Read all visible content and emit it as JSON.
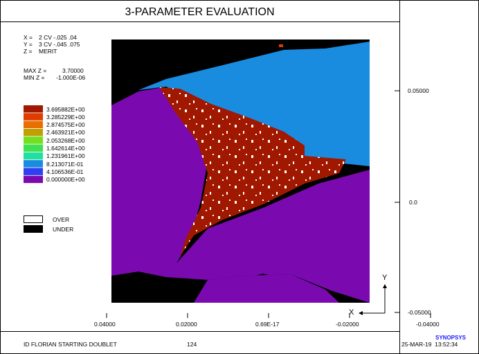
{
  "title": "3-PARAMETER EVALUATION",
  "params": [
    {
      "key": "X =",
      "value": "2 CV -.025 .04"
    },
    {
      "key": "Y =",
      "value": "3 CV -.045 .075"
    },
    {
      "key": "Z =",
      "value": "MERIT"
    }
  ],
  "range": [
    {
      "key": "MAX Z =",
      "value": "3.70000"
    },
    {
      "key": "MIN Z =",
      "value": "-1.000E-06"
    }
  ],
  "legend": [
    {
      "label": "3.695882E+00",
      "color": "#a01800"
    },
    {
      "label": "3.285229E+00",
      "color": "#e03c00"
    },
    {
      "label": "2.874575E+00",
      "color": "#e87000"
    },
    {
      "label": "2.463921E+00",
      "color": "#c0a000"
    },
    {
      "label": "2.053268E+00",
      "color": "#70e020"
    },
    {
      "label": "1.642614E+00",
      "color": "#40e050"
    },
    {
      "label": "1.231961E+00",
      "color": "#20e0a0"
    },
    {
      "label": "8.213071E-01",
      "color": "#1a8ce0"
    },
    {
      "label": "4.106536E-01",
      "color": "#3040f0"
    },
    {
      "label": "0.000000E+00",
      "color": "#7a0ab0"
    }
  ],
  "legend_extra": [
    {
      "label": "OVER",
      "color": "#ffffff"
    },
    {
      "label": "UNDER",
      "color": "#000000"
    }
  ],
  "axes": {
    "x_ticks": [
      "0.04000",
      "0.02000",
      "0.69E-17",
      "-0.02000",
      "-0.04000"
    ],
    "y_ticks": [
      "0.05000",
      "0.0",
      "-0.05000"
    ],
    "x_label": "X",
    "y_label": "Y"
  },
  "footer": {
    "left": "ID FLORIAN STARTING DOUBLET",
    "center": "124",
    "brand": "SYNOPSYS",
    "right": "25-MAR-19  13:52:34"
  },
  "chart_data": {
    "type": "heatmap",
    "title": "3-PARAMETER EVALUATION",
    "xlabel": "X",
    "ylabel": "Y",
    "x_ticks": [
      0.04,
      0.02,
      0.0,
      -0.02,
      -0.04
    ],
    "y_ticks": [
      0.05,
      0.0,
      -0.05
    ],
    "zlim": [
      -1e-06,
      3.7
    ],
    "levels": [
      3.695882,
      3.285229,
      2.874575,
      2.463921,
      2.053268,
      1.642614,
      1.231961,
      0.8213071,
      0.4106536,
      0.0
    ],
    "regions": [
      {
        "name": "UNDER",
        "description": "black background outside valid region"
      },
      {
        "name": "0.000000E+00",
        "location": "left and bottom-right"
      },
      {
        "name": "8.213071E-01",
        "location": "upper-right"
      },
      {
        "name": "3.695882E+00",
        "location": "central triangular region"
      }
    ]
  }
}
